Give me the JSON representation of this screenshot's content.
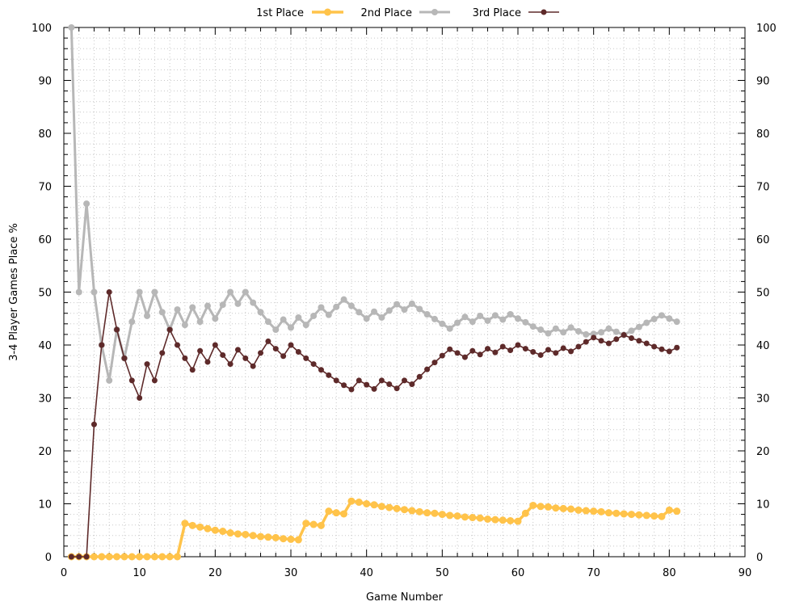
{
  "chart_data": {
    "type": "line",
    "xlabel": "Game Number",
    "ylabel": "3-4 Player Games Place %",
    "xlim": [
      0,
      90
    ],
    "ylim": [
      0,
      100
    ],
    "x_ticks": [
      0,
      10,
      20,
      30,
      40,
      50,
      60,
      70,
      80,
      90
    ],
    "y_ticks": [
      0,
      10,
      20,
      30,
      40,
      50,
      60,
      70,
      80,
      90,
      100
    ],
    "grid": true,
    "legend_position": "top-center",
    "series": [
      {
        "name": "1st Place",
        "color": "#ffc34a",
        "x": [
          1,
          2,
          3,
          4,
          5,
          6,
          7,
          8,
          9,
          10,
          11,
          12,
          13,
          14,
          15,
          16,
          17,
          18,
          19,
          20,
          21,
          22,
          23,
          24,
          25,
          26,
          27,
          28,
          29,
          30,
          31,
          32,
          33,
          34,
          35,
          36,
          37,
          38,
          39,
          40,
          41,
          42,
          43,
          44,
          45,
          46,
          47,
          48,
          49,
          50,
          51,
          52,
          53,
          54,
          55,
          56,
          57,
          58,
          59,
          60,
          61,
          62,
          63,
          64,
          65,
          66,
          67,
          68,
          69,
          70,
          71,
          72,
          73,
          74,
          75,
          76,
          77,
          78,
          79,
          80,
          81
        ],
        "values": [
          0,
          0,
          0,
          0,
          0,
          0,
          0,
          0,
          0,
          0,
          0,
          0,
          0,
          0,
          0,
          6.3,
          5.9,
          5.6,
          5.3,
          5.0,
          4.8,
          4.5,
          4.3,
          4.2,
          4.0,
          3.8,
          3.7,
          3.6,
          3.4,
          3.3,
          3.2,
          6.3,
          6.1,
          5.9,
          8.6,
          8.3,
          8.1,
          10.5,
          10.3,
          10.0,
          9.8,
          9.5,
          9.3,
          9.1,
          8.9,
          8.7,
          8.5,
          8.3,
          8.2,
          8.0,
          7.8,
          7.7,
          7.5,
          7.4,
          7.3,
          7.1,
          7.0,
          6.9,
          6.8,
          6.7,
          8.2,
          9.7,
          9.5,
          9.4,
          9.2,
          9.1,
          9.0,
          8.8,
          8.7,
          8.6,
          8.5,
          8.3,
          8.2,
          8.1,
          8.0,
          7.9,
          7.8,
          7.7,
          7.6,
          8.8,
          8.6
        ]
      },
      {
        "name": "2nd Place",
        "color": "#b7b7b7",
        "x": [
          1,
          2,
          3,
          4,
          5,
          6,
          7,
          8,
          9,
          10,
          11,
          12,
          13,
          14,
          15,
          16,
          17,
          18,
          19,
          20,
          21,
          22,
          23,
          24,
          25,
          26,
          27,
          28,
          29,
          30,
          31,
          32,
          33,
          34,
          35,
          36,
          37,
          38,
          39,
          40,
          41,
          42,
          43,
          44,
          45,
          46,
          47,
          48,
          49,
          50,
          51,
          52,
          53,
          54,
          55,
          56,
          57,
          58,
          59,
          60,
          61,
          62,
          63,
          64,
          65,
          66,
          67,
          68,
          69,
          70,
          71,
          72,
          73,
          74,
          75,
          76,
          77,
          78,
          79,
          80,
          81
        ],
        "values": [
          100,
          50,
          66.7,
          50,
          40,
          33.3,
          42.9,
          37.5,
          44.4,
          50,
          45.5,
          50,
          46.2,
          42.9,
          46.7,
          43.8,
          47.1,
          44.4,
          47.4,
          45,
          47.6,
          50,
          47.8,
          50,
          48,
          46.2,
          44.4,
          42.9,
          44.8,
          43.3,
          45.2,
          43.8,
          45.5,
          47.1,
          45.7,
          47.2,
          48.6,
          47.4,
          46.2,
          45,
          46.3,
          45.2,
          46.5,
          47.7,
          46.7,
          47.8,
          46.8,
          45.8,
          44.9,
          44,
          43.1,
          44.2,
          45.3,
          44.4,
          45.5,
          44.6,
          45.6,
          44.8,
          45.8,
          45,
          44.3,
          43.5,
          42.9,
          42.2,
          43.1,
          42.4,
          43.3,
          42.6,
          42,
          42.1,
          42.4,
          43.1,
          42.5,
          41.9,
          42.7,
          43.4,
          44.2,
          44.9,
          45.6,
          45,
          44.4
        ]
      },
      {
        "name": "3rd Place",
        "color": "#5e2a2a",
        "x": [
          1,
          2,
          3,
          4,
          5,
          6,
          7,
          8,
          9,
          10,
          11,
          12,
          13,
          14,
          15,
          16,
          17,
          18,
          19,
          20,
          21,
          22,
          23,
          24,
          25,
          26,
          27,
          28,
          29,
          30,
          31,
          32,
          33,
          34,
          35,
          36,
          37,
          38,
          39,
          40,
          41,
          42,
          43,
          44,
          45,
          46,
          47,
          48,
          49,
          50,
          51,
          52,
          53,
          54,
          55,
          56,
          57,
          58,
          59,
          60,
          61,
          62,
          63,
          64,
          65,
          66,
          67,
          68,
          69,
          70,
          71,
          72,
          73,
          74,
          75,
          76,
          77,
          78,
          79,
          80,
          81
        ],
        "values": [
          0,
          0,
          0,
          25,
          40,
          50,
          42.9,
          37.5,
          33.3,
          30,
          36.4,
          33.3,
          38.5,
          42.9,
          40,
          37.5,
          35.3,
          38.9,
          36.8,
          40,
          38.1,
          36.4,
          39.1,
          37.5,
          36,
          38.5,
          40.7,
          39.3,
          37.9,
          40,
          38.7,
          37.5,
          36.4,
          35.3,
          34.3,
          33.3,
          32.4,
          31.6,
          33.3,
          32.5,
          31.7,
          33.3,
          32.6,
          31.8,
          33.3,
          32.6,
          34.0,
          35.4,
          36.7,
          38,
          39.2,
          38.5,
          37.7,
          38.9,
          38.2,
          39.3,
          38.6,
          39.7,
          39,
          40,
          39.3,
          38.7,
          38.1,
          39.1,
          38.5,
          39.4,
          38.8,
          39.7,
          40.6,
          41.4,
          40.8,
          40.3,
          41.1,
          41.9,
          41.3,
          40.8,
          40.3,
          39.7,
          39.2,
          38.8,
          39.5
        ]
      }
    ]
  }
}
